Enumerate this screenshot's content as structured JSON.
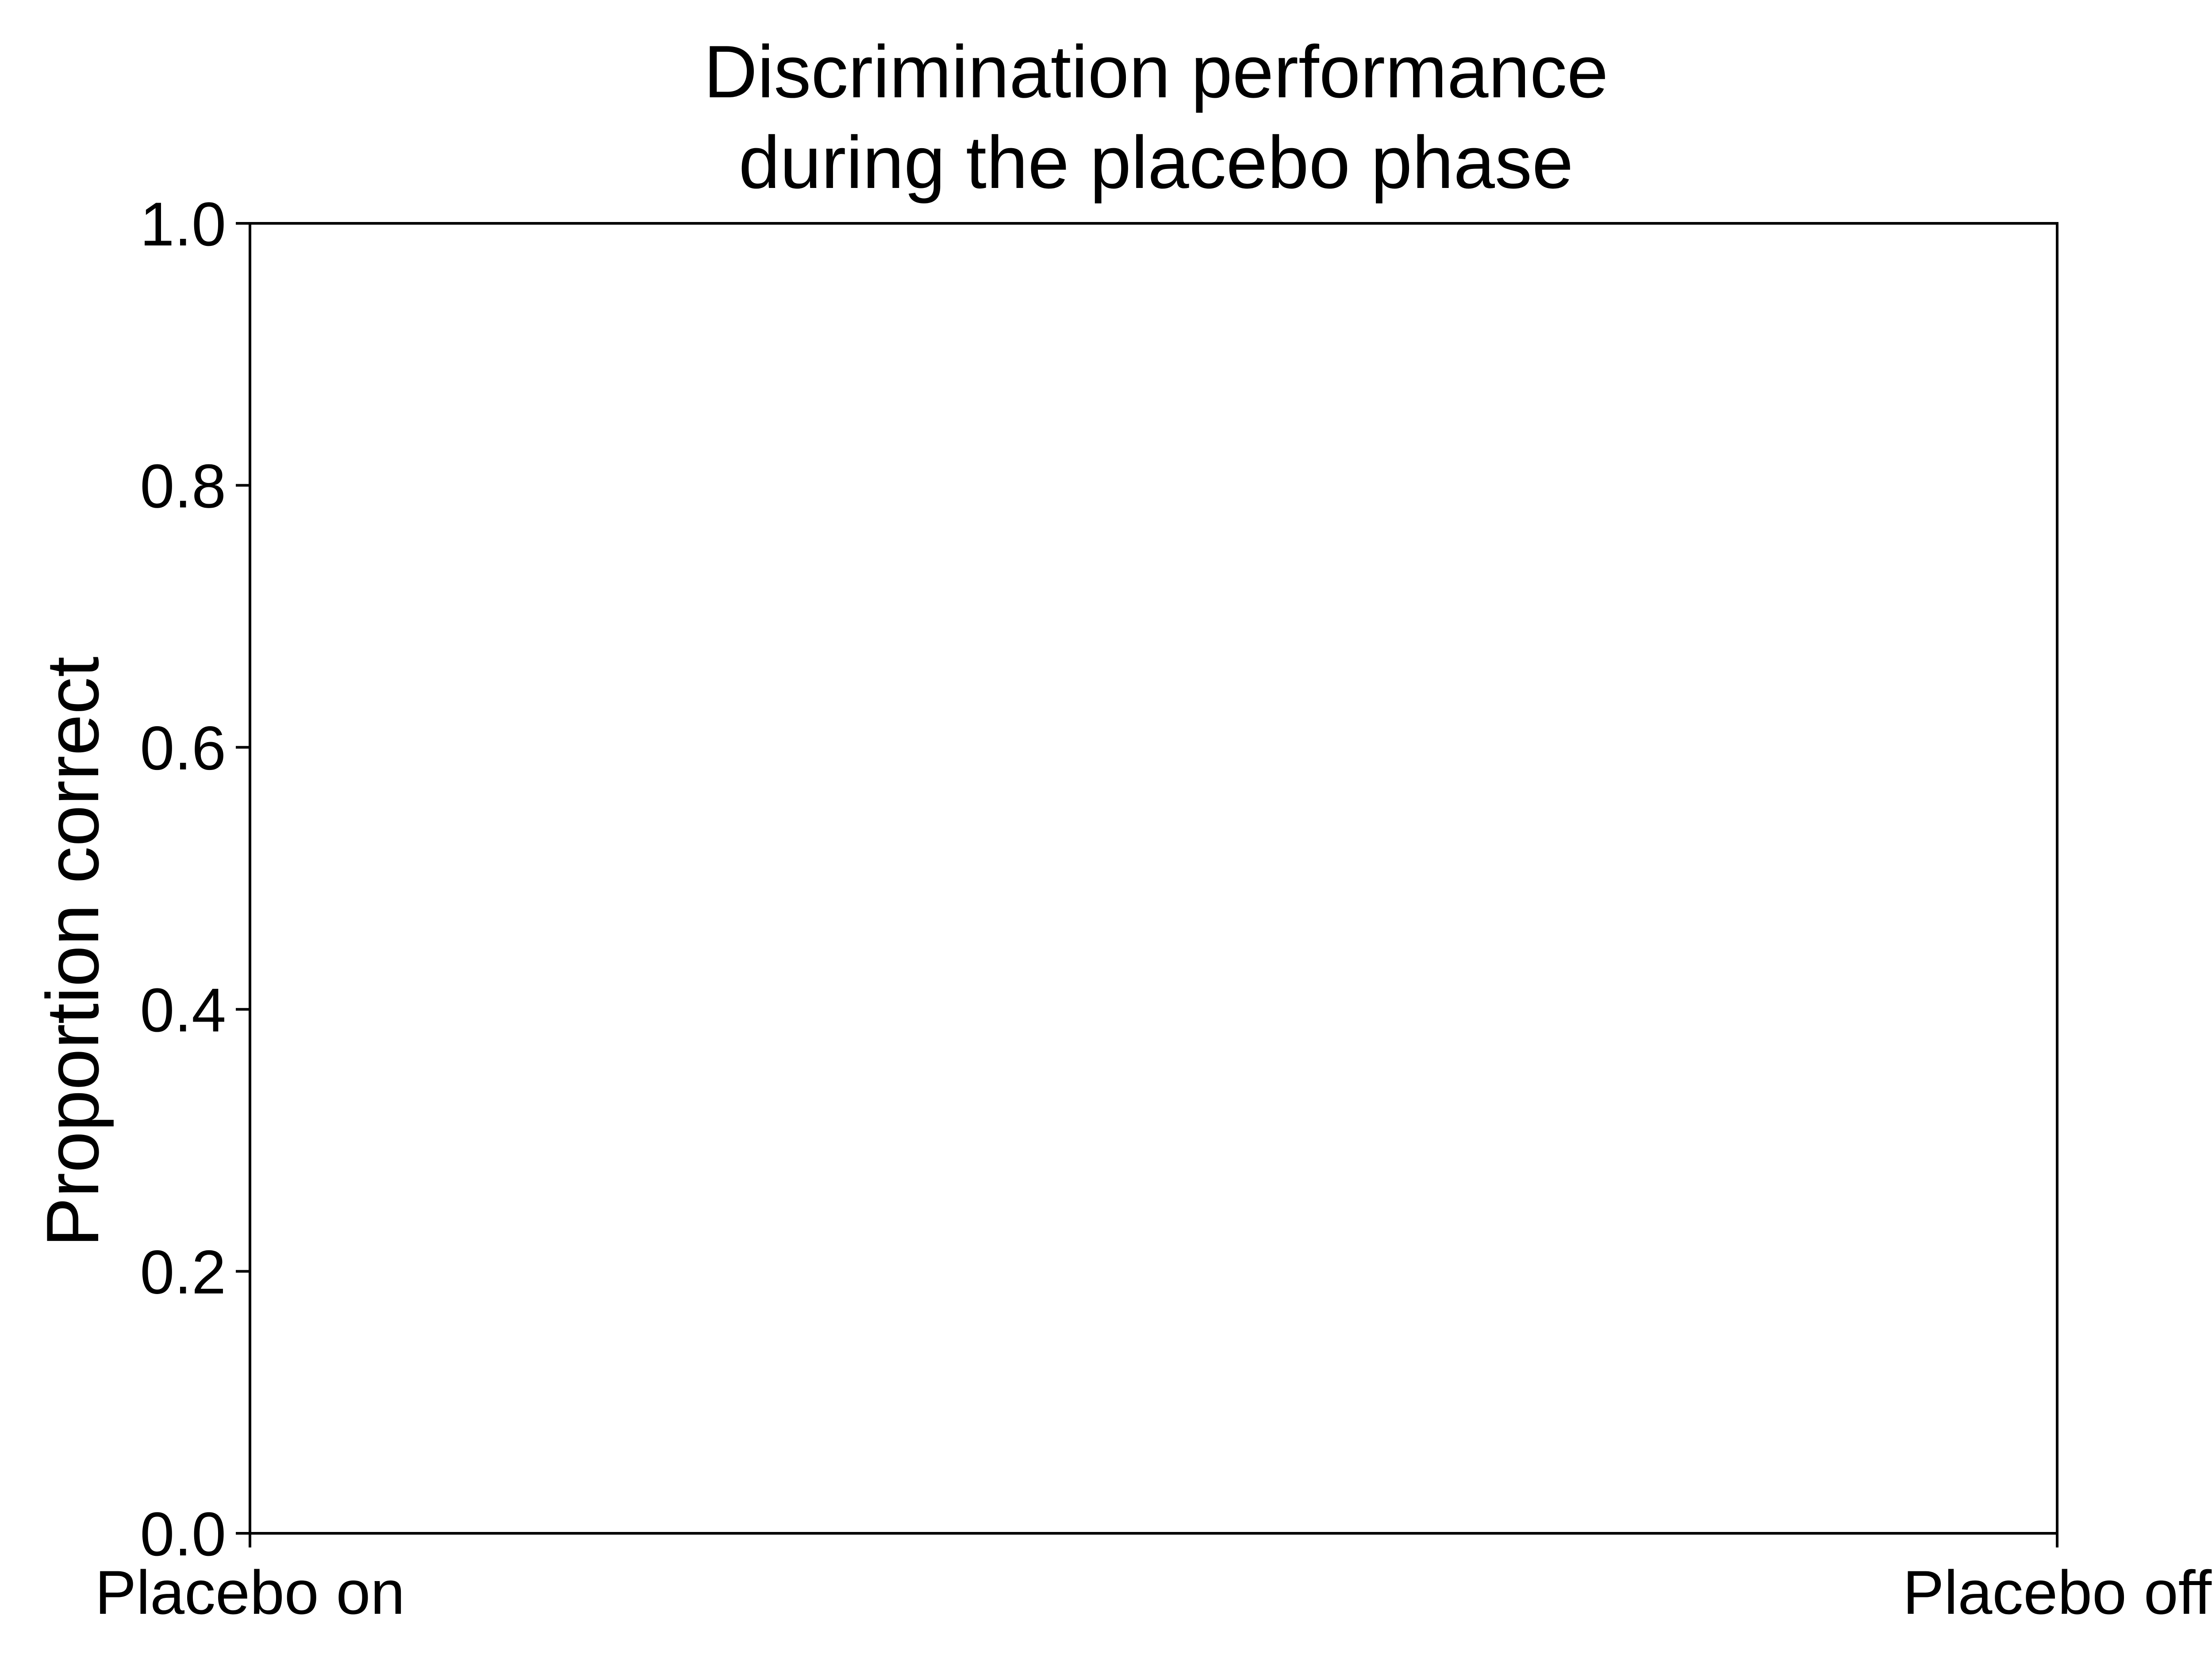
{
  "chart_data": {
    "type": "line",
    "title_lines": [
      "Discrimination performance",
      "during the placebo phase"
    ],
    "xlabel": "",
    "ylabel": "Proportion correct",
    "categories": [
      "Placebo on",
      "Placebo off"
    ],
    "ylim": [
      0.0,
      1.0
    ],
    "yticks": [
      0.0,
      0.2,
      0.4,
      0.6,
      0.8,
      1.0
    ],
    "ytick_labels": [
      "0.0",
      "0.2",
      "0.4",
      "0.6",
      "0.8",
      "1.0"
    ],
    "series": [],
    "grid": false,
    "legend": "none",
    "colors": {
      "axis": "#000000",
      "background": "#ffffff"
    }
  }
}
